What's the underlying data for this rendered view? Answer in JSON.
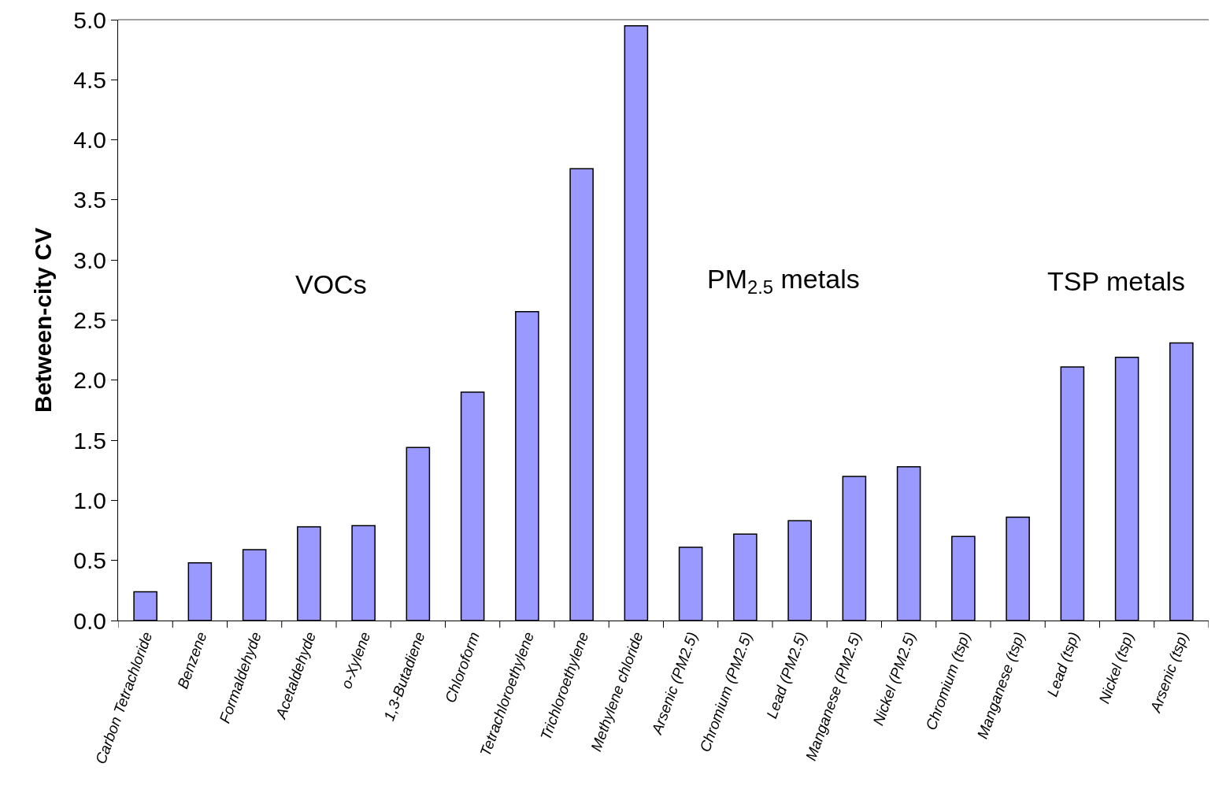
{
  "chart_data": {
    "type": "bar",
    "ylabel": "Between-city CV",
    "categories": [
      "Carbon Tetrachloride",
      "Benzene",
      "Formaldehyde",
      "Acetaldehyde",
      "o-Xylene",
      "1,3-Butadiene",
      "Chloroform",
      "Tetrachloroethylene",
      "Trichloroethylene",
      "Methylene chloride",
      "Arsenic (PM2.5)",
      "Chromium (PM2.5)",
      "Lead (PM2.5)",
      "Manganese (PM2.5)",
      "Nickel (PM2.5)",
      "Chromium (tsp)",
      "Manganese (tsp)",
      "Lead (tsp)",
      "Nickel (tsp)",
      "Arsenic (tsp)"
    ],
    "values": [
      0.24,
      0.48,
      0.59,
      0.78,
      0.79,
      1.44,
      1.9,
      2.57,
      3.76,
      4.95,
      0.61,
      0.72,
      0.83,
      1.2,
      1.28,
      0.7,
      0.86,
      2.11,
      2.19,
      2.31
    ],
    "color": "#9999ff",
    "ylim": [
      0,
      5
    ],
    "yticks": [
      {
        "value": 0,
        "label": "0.0"
      },
      {
        "value": 0.5,
        "label": "0.5"
      },
      {
        "value": 1,
        "label": "1.0"
      },
      {
        "value": 1.5,
        "label": "1.5"
      },
      {
        "value": 2,
        "label": "2.0"
      },
      {
        "value": 2.5,
        "label": "2.5"
      },
      {
        "value": 3,
        "label": "3.0"
      },
      {
        "value": 3.5,
        "label": "3.5"
      },
      {
        "value": 4,
        "label": "4.0"
      },
      {
        "value": 4.5,
        "label": "4.5"
      },
      {
        "value": 5,
        "label": "5.0"
      }
    ],
    "annotations": [
      "VOCs",
      "PM$_{2.5}$ metals",
      "TSP metals"
    ]
  }
}
